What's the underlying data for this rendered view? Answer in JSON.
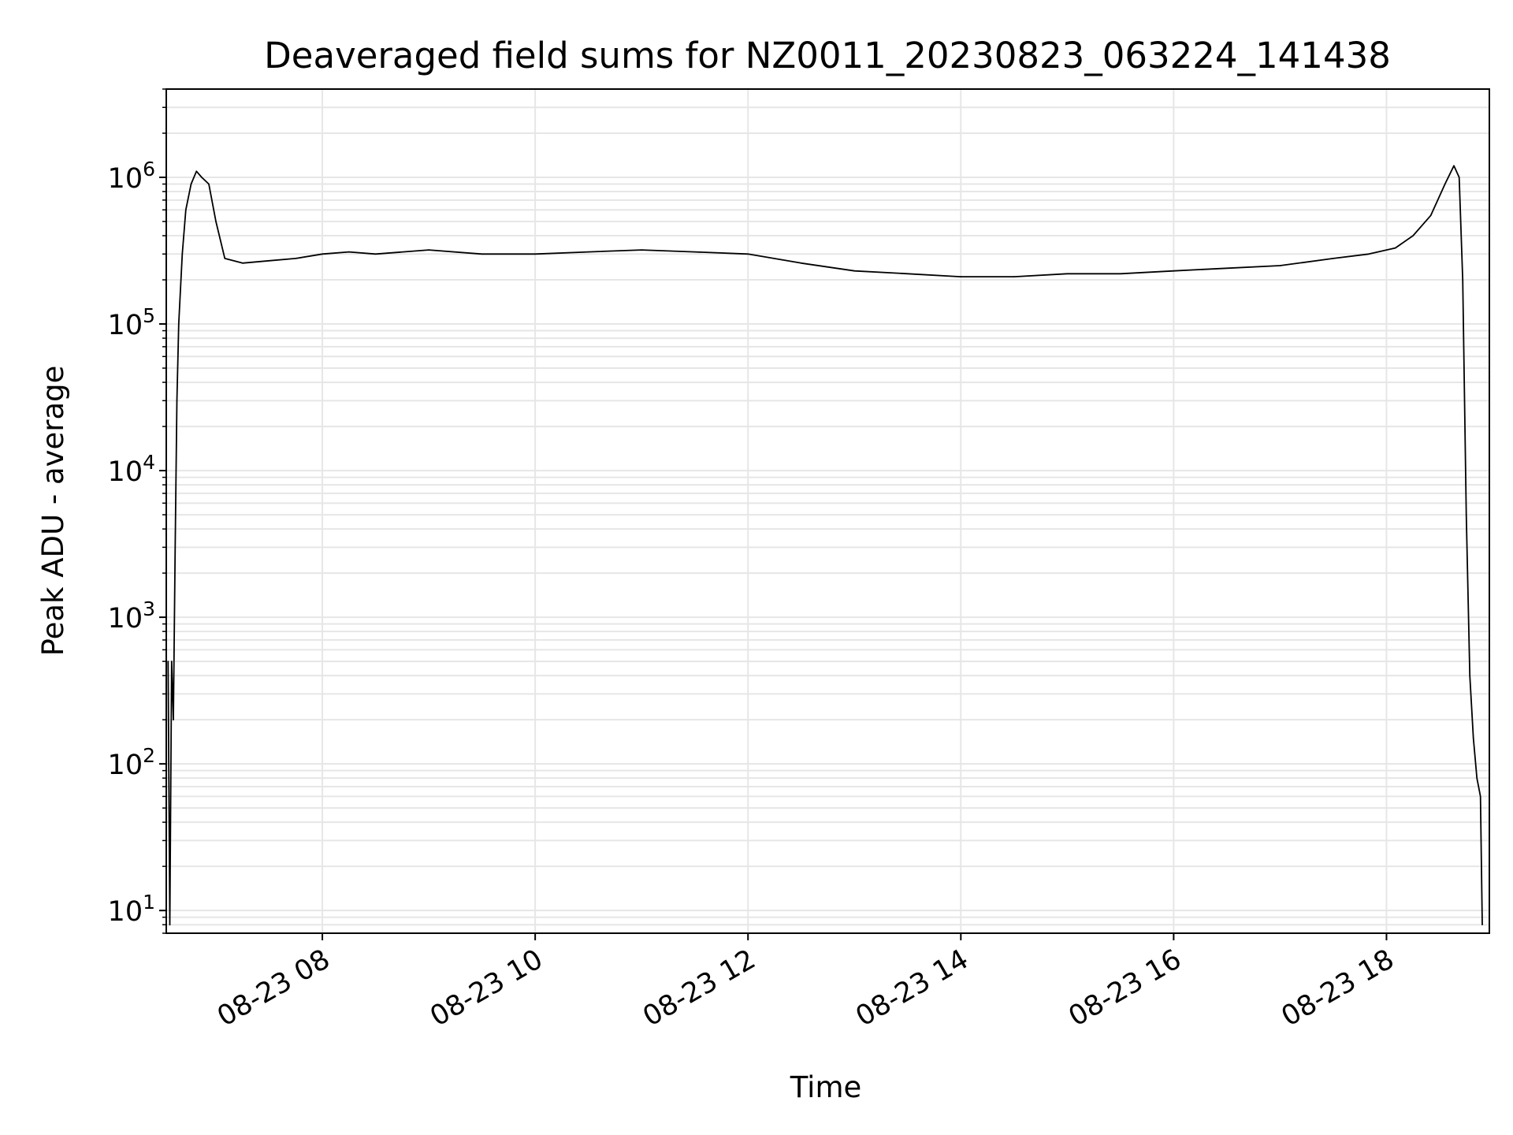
{
  "chart_data": {
    "type": "line",
    "title": "Deaveraged field sums for NZ0011_20230823_063224_141438",
    "xlabel": "Time",
    "ylabel": "Peak ADU - average",
    "yscale": "log",
    "ylim": [
      7,
      4000000
    ],
    "xlim": [
      "2023-08-23T06:32:00",
      "2023-08-23T18:58:00"
    ],
    "x_ticks": [
      {
        "value": "2023-08-23T08:00:00",
        "label": "08-23 08"
      },
      {
        "value": "2023-08-23T10:00:00",
        "label": "08-23 10"
      },
      {
        "value": "2023-08-23T12:00:00",
        "label": "08-23 12"
      },
      {
        "value": "2023-08-23T14:00:00",
        "label": "08-23 14"
      },
      {
        "value": "2023-08-23T16:00:00",
        "label": "08-23 16"
      },
      {
        "value": "2023-08-23T18:00:00",
        "label": "08-23 18"
      }
    ],
    "y_ticks": [
      {
        "value": 10,
        "base": "10",
        "exp": "1"
      },
      {
        "value": 100,
        "base": "10",
        "exp": "2"
      },
      {
        "value": 1000,
        "base": "10",
        "exp": "3"
      },
      {
        "value": 10000,
        "base": "10",
        "exp": "4"
      },
      {
        "value": 100000,
        "base": "10",
        "exp": "5"
      },
      {
        "value": 1000000,
        "base": "10",
        "exp": "6"
      }
    ],
    "grid": true,
    "line_color": "#000000",
    "series": [
      {
        "x": [
          "2023-08-23T06:33:00",
          "2023-08-23T06:34:00",
          "2023-08-23T06:35:00",
          "2023-08-23T06:36:00",
          "2023-08-23T06:37:00",
          "2023-08-23T06:38:00",
          "2023-08-23T06:39:00",
          "2023-08-23T06:41:00",
          "2023-08-23T06:43:00",
          "2023-08-23T06:46:00",
          "2023-08-23T06:49:00",
          "2023-08-23T06:52:00",
          "2023-08-23T06:56:00",
          "2023-08-23T07:00:00",
          "2023-08-23T07:05:00",
          "2023-08-23T07:15:00",
          "2023-08-23T07:30:00",
          "2023-08-23T07:45:00",
          "2023-08-23T08:00:00",
          "2023-08-23T08:15:00",
          "2023-08-23T08:30:00",
          "2023-08-23T09:00:00",
          "2023-08-23T09:30:00",
          "2023-08-23T10:00:00",
          "2023-08-23T10:30:00",
          "2023-08-23T11:00:00",
          "2023-08-23T11:30:00",
          "2023-08-23T12:00:00",
          "2023-08-23T12:30:00",
          "2023-08-23T13:00:00",
          "2023-08-23T13:30:00",
          "2023-08-23T14:00:00",
          "2023-08-23T14:30:00",
          "2023-08-23T15:00:00",
          "2023-08-23T15:30:00",
          "2023-08-23T16:00:00",
          "2023-08-23T16:30:00",
          "2023-08-23T17:00:00",
          "2023-08-23T17:30:00",
          "2023-08-23T17:50:00",
          "2023-08-23T18:05:00",
          "2023-08-23T18:15:00",
          "2023-08-23T18:25:00",
          "2023-08-23T18:33:00",
          "2023-08-23T18:38:00",
          "2023-08-23T18:41:00",
          "2023-08-23T18:43:00",
          "2023-08-23T18:45:00",
          "2023-08-23T18:47:00",
          "2023-08-23T18:49:00",
          "2023-08-23T18:51:00",
          "2023-08-23T18:53:00",
          "2023-08-23T18:54:00"
        ],
        "y": [
          500,
          8,
          500,
          200,
          3000,
          30000,
          100000,
          300000,
          600000,
          900000,
          1100000,
          1000000,
          900000,
          500000,
          280000,
          260000,
          270000,
          280000,
          300000,
          310000,
          300000,
          320000,
          300000,
          300000,
          310000,
          320000,
          310000,
          300000,
          260000,
          230000,
          220000,
          210000,
          210000,
          220000,
          220000,
          230000,
          240000,
          250000,
          280000,
          300000,
          330000,
          400000,
          550000,
          900000,
          1200000,
          1000000,
          200000,
          5000,
          400,
          150,
          80,
          60,
          8
        ]
      }
    ]
  }
}
